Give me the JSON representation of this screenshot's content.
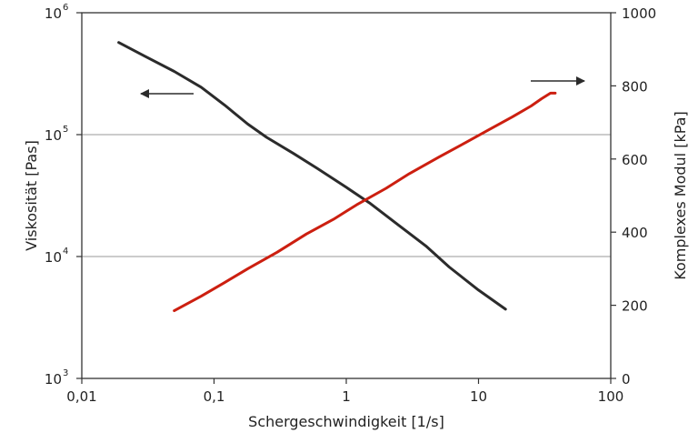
{
  "chart_data": {
    "type": "line",
    "xlabel": "Schergeschwindigkeit [1/s]",
    "ylabel_left": "Viskosität [Pas]",
    "ylabel_right": "Komplexes Modul [kPa]",
    "x_scale": "log",
    "y_left_scale": "log",
    "xlim": [
      0.01,
      100
    ],
    "ylim_left": [
      1000,
      1000000
    ],
    "ylim_right": [
      0,
      1000
    ],
    "x_ticks": [
      {
        "value": 0.01,
        "label": "0,01"
      },
      {
        "value": 0.1,
        "label": "0,1"
      },
      {
        "value": 1,
        "label": "1"
      },
      {
        "value": 10,
        "label": "10"
      },
      {
        "value": 100,
        "label": "100"
      }
    ],
    "y_left_ticks": [
      {
        "value": 1000,
        "base": "10",
        "exp": "3"
      },
      {
        "value": 10000,
        "base": "10",
        "exp": "4"
      },
      {
        "value": 100000,
        "base": "10",
        "exp": "5"
      },
      {
        "value": 1000000,
        "base": "10",
        "exp": "6"
      }
    ],
    "y_right_ticks": [
      {
        "value": 0,
        "label": "0"
      },
      {
        "value": 200,
        "label": "200"
      },
      {
        "value": 400,
        "label": "400"
      },
      {
        "value": 600,
        "label": "600"
      },
      {
        "value": 800,
        "label": "800"
      },
      {
        "value": 1000,
        "label": "1000"
      }
    ],
    "grid": "horizontal at 10^4 and 10^5",
    "series": [
      {
        "axis": "left",
        "color": "#2b2b2b",
        "x": [
          0.019,
          0.03,
          0.05,
          0.08,
          0.12,
          0.18,
          0.25,
          0.4,
          0.6,
          1.0,
          1.5,
          2.5,
          4,
          6,
          10,
          16
        ],
        "y": [
          570000,
          440000,
          330000,
          245000,
          175000,
          122000,
          95000,
          70000,
          53000,
          37000,
          27500,
          18000,
          12200,
          8200,
          5300,
          3700
        ]
      },
      {
        "axis": "right",
        "color": "#cc1f10",
        "x": [
          0.05,
          0.08,
          0.12,
          0.18,
          0.3,
          0.5,
          0.8,
          1.2,
          2,
          3,
          5,
          8,
          12,
          18,
          25,
          30,
          35,
          38
        ],
        "y": [
          185,
          225,
          262,
          300,
          345,
          395,
          435,
          475,
          520,
          560,
          605,
          645,
          680,
          715,
          745,
          765,
          780,
          780
        ]
      }
    ],
    "annotations": [
      {
        "type": "arrow",
        "direction": "left",
        "meaning": "left axis",
        "color": "#2b2b2b"
      },
      {
        "type": "arrow",
        "direction": "right",
        "meaning": "right axis",
        "color": "#2b2b2b"
      }
    ]
  }
}
